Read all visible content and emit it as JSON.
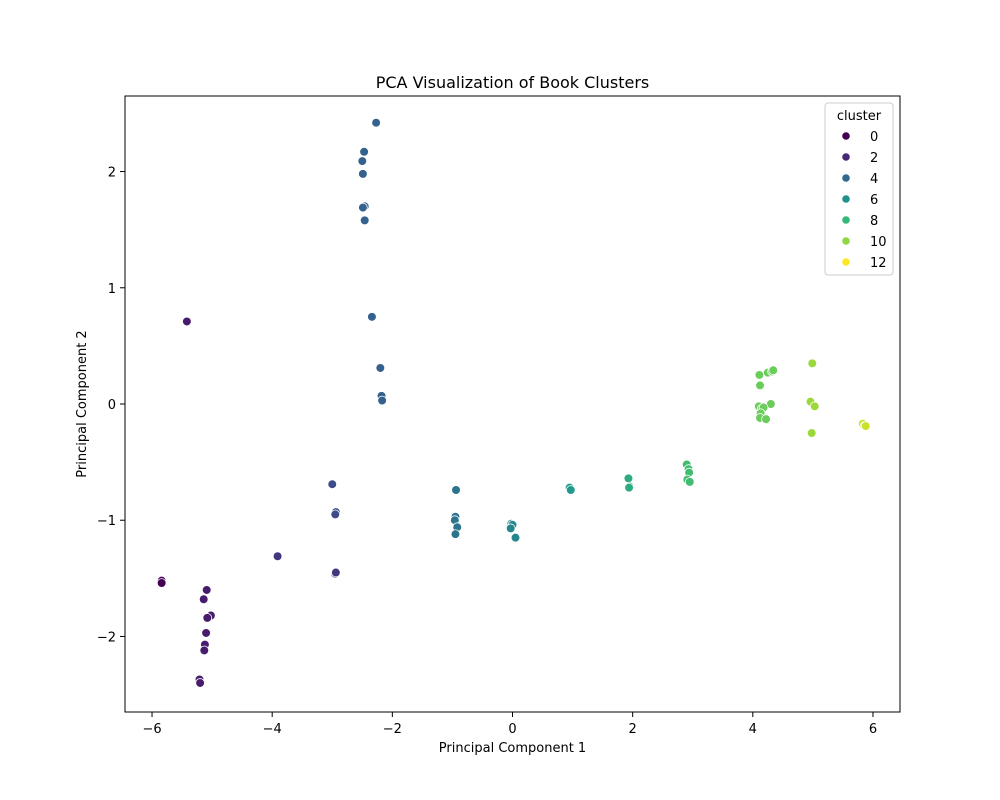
{
  "chart_data": {
    "type": "scatter",
    "title": "PCA Visualization of Book Clusters",
    "xlabel": "Principal Component 1",
    "ylabel": "Principal Component 2",
    "xlim": [
      -6.45,
      6.45
    ],
    "ylim": [
      -2.65,
      2.65
    ],
    "x_ticks": [
      -6,
      -4,
      -2,
      0,
      2,
      4,
      6
    ],
    "x_tick_labels": [
      "−6",
      "−4",
      "−2",
      "0",
      "2",
      "4",
      "6"
    ],
    "y_ticks": [
      -2,
      -1,
      0,
      1,
      2
    ],
    "y_tick_labels": [
      "−2",
      "−1",
      "0",
      "1",
      "2"
    ],
    "grid": false,
    "legend": {
      "title": "cluster",
      "placement": "top-right",
      "entries": [
        {
          "label": "0",
          "color": "#440154"
        },
        {
          "label": "2",
          "color": "#482878"
        },
        {
          "label": "4",
          "color": "#31688e"
        },
        {
          "label": "6",
          "color": "#21918c"
        },
        {
          "label": "8",
          "color": "#35b779"
        },
        {
          "label": "10",
          "color": "#90d743"
        },
        {
          "label": "12",
          "color": "#fde725"
        }
      ]
    },
    "colormap": "viridis",
    "cluster_range": [
      0,
      13
    ],
    "points": [
      {
        "x": -5.84,
        "y": -1.52,
        "cluster": 0
      },
      {
        "x": -5.84,
        "y": -1.54,
        "cluster": 0
      },
      {
        "x": -5.42,
        "y": 0.71,
        "cluster": 1
      },
      {
        "x": -5.09,
        "y": -1.6,
        "cluster": 1
      },
      {
        "x": -5.14,
        "y": -1.68,
        "cluster": 1
      },
      {
        "x": -5.02,
        "y": -1.82,
        "cluster": 1
      },
      {
        "x": -5.08,
        "y": -1.84,
        "cluster": 1
      },
      {
        "x": -5.1,
        "y": -1.97,
        "cluster": 1
      },
      {
        "x": -5.12,
        "y": -2.07,
        "cluster": 1
      },
      {
        "x": -5.13,
        "y": -2.12,
        "cluster": 1
      },
      {
        "x": -5.21,
        "y": -2.37,
        "cluster": 1
      },
      {
        "x": -5.2,
        "y": -2.4,
        "cluster": 1
      },
      {
        "x": -3.91,
        "y": -1.31,
        "cluster": 2
      },
      {
        "x": -2.95,
        "y": -1.46,
        "cluster": 2
      },
      {
        "x": -2.94,
        "y": -1.45,
        "cluster": 2
      },
      {
        "x": -3.0,
        "y": -0.69,
        "cluster": 3
      },
      {
        "x": -2.94,
        "y": -0.93,
        "cluster": 3
      },
      {
        "x": -2.95,
        "y": -0.95,
        "cluster": 3
      },
      {
        "x": -2.27,
        "y": 2.42,
        "cluster": 4
      },
      {
        "x": -2.47,
        "y": 2.17,
        "cluster": 4
      },
      {
        "x": -2.5,
        "y": 2.09,
        "cluster": 4
      },
      {
        "x": -2.49,
        "y": 1.98,
        "cluster": 4
      },
      {
        "x": -2.46,
        "y": 1.7,
        "cluster": 4
      },
      {
        "x": -2.49,
        "y": 1.69,
        "cluster": 4
      },
      {
        "x": -2.46,
        "y": 1.58,
        "cluster": 4
      },
      {
        "x": -2.34,
        "y": 0.75,
        "cluster": 4
      },
      {
        "x": -2.2,
        "y": 0.31,
        "cluster": 4
      },
      {
        "x": -2.18,
        "y": 0.07,
        "cluster": 4
      },
      {
        "x": -2.17,
        "y": 0.03,
        "cluster": 4
      },
      {
        "x": -0.94,
        "y": -0.74,
        "cluster": 5
      },
      {
        "x": -0.95,
        "y": -0.97,
        "cluster": 5
      },
      {
        "x": -0.96,
        "y": -1.0,
        "cluster": 5
      },
      {
        "x": -0.92,
        "y": -1.06,
        "cluster": 5
      },
      {
        "x": -0.95,
        "y": -1.12,
        "cluster": 5
      },
      {
        "x": -0.02,
        "y": -1.03,
        "cluster": 6
      },
      {
        "x": 0.0,
        "y": -1.04,
        "cluster": 6
      },
      {
        "x": -0.03,
        "y": -1.07,
        "cluster": 6
      },
      {
        "x": 0.05,
        "y": -1.15,
        "cluster": 6
      },
      {
        "x": 0.95,
        "y": -0.72,
        "cluster": 7
      },
      {
        "x": 0.97,
        "y": -0.74,
        "cluster": 7
      },
      {
        "x": 1.93,
        "y": -0.64,
        "cluster": 8
      },
      {
        "x": 1.95,
        "y": -0.71,
        "cluster": 8
      },
      {
        "x": 1.94,
        "y": -0.72,
        "cluster": 8
      },
      {
        "x": 2.9,
        "y": -0.52,
        "cluster": 9
      },
      {
        "x": 2.93,
        "y": -0.56,
        "cluster": 9
      },
      {
        "x": 2.94,
        "y": -0.59,
        "cluster": 9
      },
      {
        "x": 2.91,
        "y": -0.65,
        "cluster": 9
      },
      {
        "x": 2.95,
        "y": -0.67,
        "cluster": 9
      },
      {
        "x": 4.11,
        "y": 0.25,
        "cluster": 10
      },
      {
        "x": 4.25,
        "y": 0.27,
        "cluster": 10
      },
      {
        "x": 4.32,
        "y": 0.28,
        "cluster": 10
      },
      {
        "x": 4.34,
        "y": 0.29,
        "cluster": 10
      },
      {
        "x": 4.12,
        "y": 0.16,
        "cluster": 10
      },
      {
        "x": 4.3,
        "y": 0.0,
        "cluster": 10
      },
      {
        "x": 4.1,
        "y": -0.02,
        "cluster": 10
      },
      {
        "x": 4.15,
        "y": -0.04,
        "cluster": 10
      },
      {
        "x": 4.18,
        "y": -0.03,
        "cluster": 10
      },
      {
        "x": 4.13,
        "y": -0.08,
        "cluster": 10
      },
      {
        "x": 4.12,
        "y": -0.12,
        "cluster": 10
      },
      {
        "x": 4.22,
        "y": -0.13,
        "cluster": 10
      },
      {
        "x": 4.99,
        "y": 0.35,
        "cluster": 11
      },
      {
        "x": 4.96,
        "y": 0.02,
        "cluster": 11
      },
      {
        "x": 5.03,
        "y": -0.02,
        "cluster": 11
      },
      {
        "x": 4.98,
        "y": -0.25,
        "cluster": 11
      },
      {
        "x": 5.83,
        "y": -0.17,
        "cluster": 12
      },
      {
        "x": 5.86,
        "y": -0.19,
        "cluster": 12
      },
      {
        "x": 5.88,
        "y": -0.19,
        "cluster": 12
      }
    ]
  }
}
